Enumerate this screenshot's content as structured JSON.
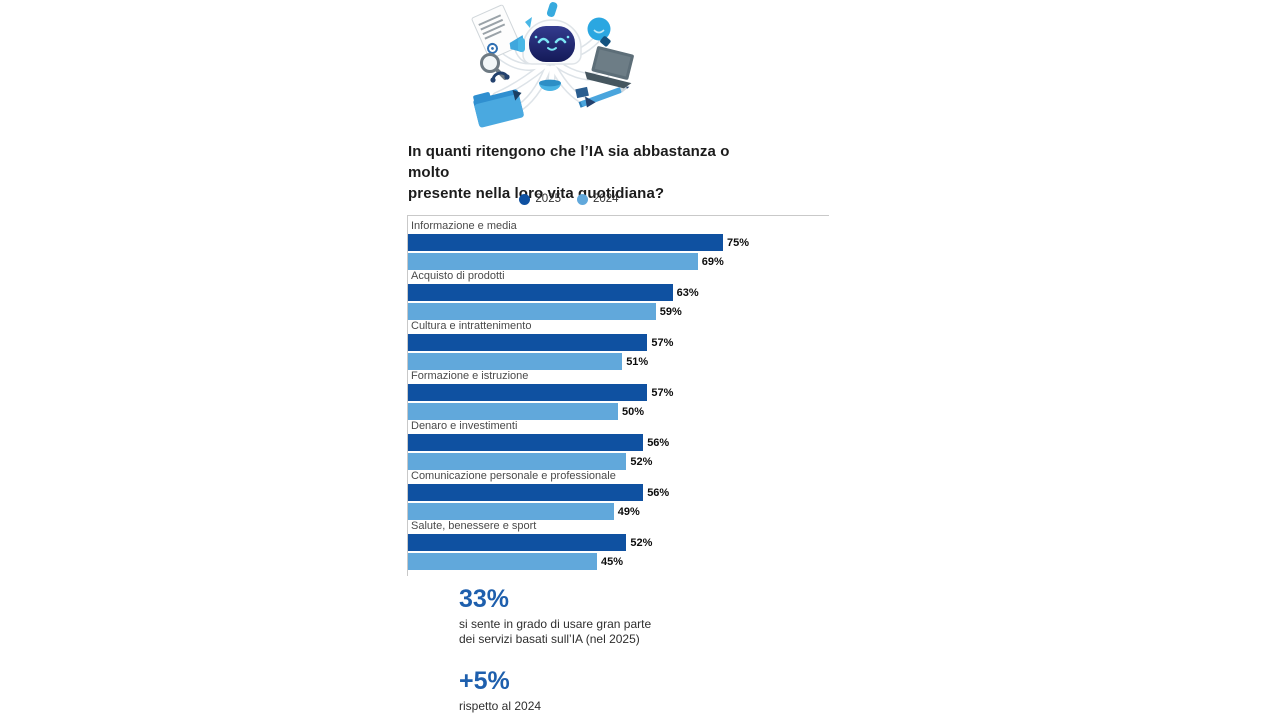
{
  "page": {
    "background": "#ffffff"
  },
  "illustration": {
    "name": "ai-octopus-robot",
    "description": "Robot-octopus mascot multitasking with office items",
    "icons": [
      "document-icon",
      "magnifier-icon",
      "megaphone-icon",
      "folder-icon",
      "headphones-icon",
      "bowl-icon",
      "laptop-icon",
      "pencil-icon",
      "lightbulb-icon",
      "antenna-icon"
    ]
  },
  "header": {
    "title": "In quanti ritengono che l’IA sia abbastanza o molto presente nella loro vita quotidiana?",
    "title_lines": [
      "In quanti ritengono che l’IA sia abbastanza o molto",
      "presente nella loro vita quotidiana?"
    ]
  },
  "chart_data": {
    "type": "bar",
    "orientation": "horizontal",
    "title": "In quanti ritengono che l’IA sia abbastanza o molto presente nella loro vita quotidiana?",
    "categories": [
      "Informazione e media",
      "Acquisto di prodotti",
      "Cultura e intrattenimento",
      "Formazione e istruzione",
      "Denaro e investimenti",
      "Comunicazione personale e professionale",
      "Salute, benessere e sport"
    ],
    "series": [
      {
        "name": "2025",
        "color": "#0f51a1",
        "values": [
          75,
          63,
          57,
          57,
          56,
          56,
          52
        ]
      },
      {
        "name": "2024",
        "color": "#61a8db",
        "values": [
          69,
          59,
          51,
          50,
          52,
          49,
          45
        ]
      }
    ],
    "value_suffix": "%",
    "xlim": [
      0,
      100
    ],
    "grid": false,
    "legend_position": "top-center",
    "legend": [
      {
        "label": "2025",
        "color": "#0f51a1"
      },
      {
        "label": "2024",
        "color": "#61a8db"
      }
    ]
  },
  "stats": [
    {
      "value": "33%",
      "lines": [
        "si sente in grado di usare gran parte",
        "dei servizi basati sull’IA (nel 2025)"
      ]
    },
    {
      "value": "+5%",
      "lines": [
        "rispetto al 2024"
      ]
    }
  ],
  "colors": {
    "bar_2025": "#0f51a1",
    "bar_2024": "#61a8db",
    "stat_accent": "#1e5fad",
    "axis_line": "#c9c9c9",
    "title_text": "#1c1c1c",
    "category_text": "#4a4a4a",
    "value_text": "#0d0d0d",
    "caption_text": "#2f2f2f"
  }
}
